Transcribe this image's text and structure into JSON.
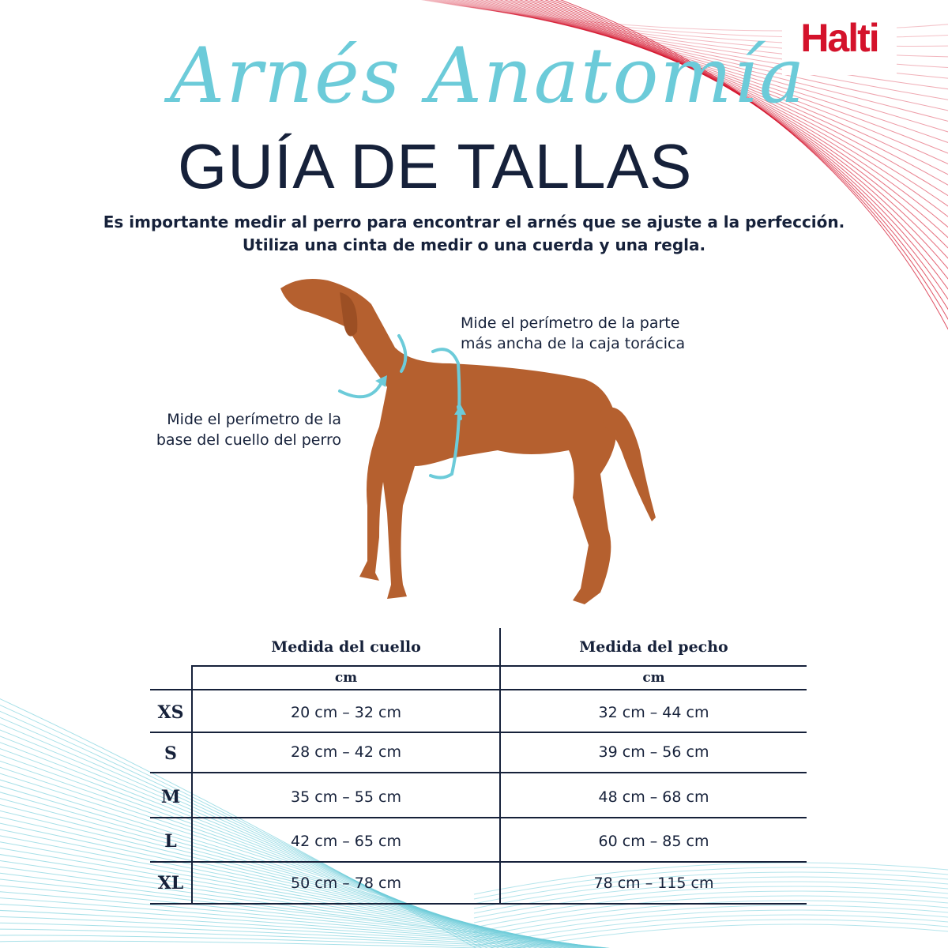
{
  "brand": {
    "logo": "Halti",
    "color": "#d4122b"
  },
  "header": {
    "script_title": "Arnés Anatomía",
    "title": "GUÍA DE TALLAS"
  },
  "intro": {
    "line1": "Es importante medir al perro para encontrar el arnés que se ajuste a la perfección.",
    "line2": "Utiliza una cinta de medir o una cuerda y una regla."
  },
  "notes": {
    "chest_line1": "Mide el perímetro de la parte",
    "chest_line2": "más ancha de la caja torácica",
    "neck_line1": "Mide el perímetro de la",
    "neck_line2": "base del cuello del perro"
  },
  "table": {
    "headers": [
      "Medida del cuello",
      "Medida del pecho"
    ],
    "units": [
      "cm",
      "cm"
    ],
    "rows": [
      {
        "size": "XS",
        "neck": "20 cm – 32 cm",
        "chest": "32 cm – 44 cm"
      },
      {
        "size": "S",
        "neck": "28 cm – 42 cm",
        "chest": "39 cm – 56 cm"
      },
      {
        "size": "M",
        "neck": "35 cm – 55 cm",
        "chest": "48 cm – 68 cm"
      },
      {
        "size": "L",
        "neck": "42 cm – 65 cm",
        "chest": "60 cm – 85 cm"
      },
      {
        "size": "XL",
        "neck": "50 cm – 78 cm",
        "chest": "78 cm – 115 cm"
      }
    ]
  },
  "colors": {
    "navy": "#16213a",
    "teal": "#6ccbd9",
    "dog": "#b5602f"
  }
}
